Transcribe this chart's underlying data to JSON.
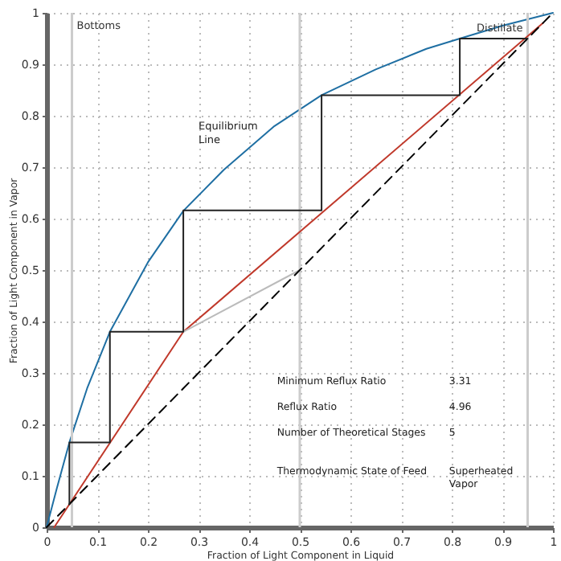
{
  "chart_data": {
    "type": "line",
    "xlabel": "Fraction of Light Component in Liquid",
    "ylabel": "Fraction of Light Component in Vapor",
    "xlim": [
      0,
      1
    ],
    "ylim": [
      0,
      1
    ],
    "xticks": [
      0,
      0.1,
      0.2,
      0.3,
      0.4,
      0.5,
      0.6,
      0.7,
      0.8,
      0.9,
      1
    ],
    "yticks": [
      0,
      0.1,
      0.2,
      0.3,
      0.4,
      0.5,
      0.6,
      0.7,
      0.8,
      0.9,
      1
    ],
    "grid": true,
    "series": [
      {
        "color": "#1f6fa3",
        "line_style": "solid",
        "x": [
          0,
          0.02,
          0.045,
          0.08,
          0.125,
          0.2,
          0.27,
          0.35,
          0.45,
          0.543,
          0.65,
          0.75,
          0.816,
          0.9,
          1
        ],
        "values": [
          0,
          0.075,
          0.165,
          0.27,
          0.38,
          0.515,
          0.615,
          0.695,
          0.78,
          0.84,
          0.89,
          0.93,
          0.95,
          0.975,
          1
        ]
      },
      {
        "color": "#c0392b",
        "line_style": "solid",
        "x": [
          0.015,
          0.27,
          0.98
        ],
        "values": [
          0,
          0.38,
          0.98
        ]
      },
      {
        "color": "#bbbbbb",
        "line_style": "solid",
        "x": [
          0.27,
          0.5
        ],
        "values": [
          0.38,
          0.5
        ]
      },
      {
        "color": "#000000",
        "line_style": "dashed",
        "x": [
          0,
          1
        ],
        "values": [
          0,
          1
        ]
      },
      {
        "color": "#222222",
        "line_style": "solid",
        "x": [
          0.95,
          0.816,
          0.816,
          0.543,
          0.543,
          0.27,
          0.27,
          0.125,
          0.125,
          0.045,
          0.045
        ],
        "values": [
          0.95,
          0.95,
          0.84,
          0.84,
          0.616,
          0.616,
          0.38,
          0.38,
          0.165,
          0.165,
          0.045
        ]
      }
    ],
    "ref_lines": [
      {
        "axis": "x",
        "value": 0.05,
        "label": "Bottoms",
        "color": "#cccccc"
      },
      {
        "axis": "x",
        "value": 0.5,
        "label": null,
        "color": "#cccccc"
      },
      {
        "axis": "x",
        "value": 0.95,
        "label": "Distillate",
        "color": "#cccccc"
      }
    ],
    "annotations": [
      "Equilibrium Line",
      "Minimum Reflux Ratio",
      "3.31",
      "Reflux Ratio",
      "4.96",
      "Number of Theoretical Stages",
      "5",
      "Thermodynamic State of Feed",
      "Superheated Vapor"
    ]
  }
}
